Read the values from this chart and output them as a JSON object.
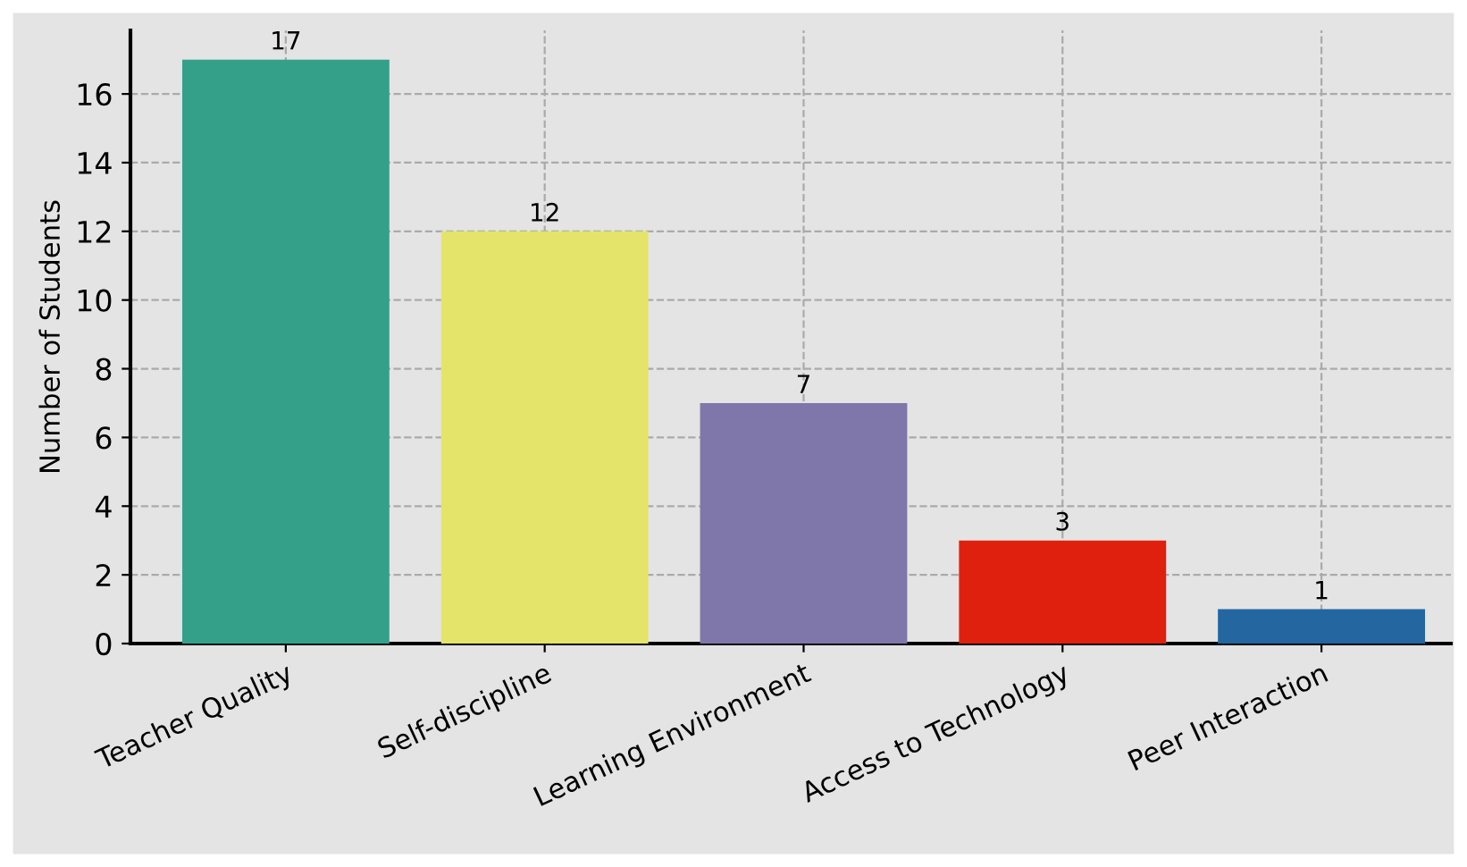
{
  "chart_data": {
    "type": "bar",
    "ylabel": "Number of Students",
    "categories": [
      "Teacher Quality",
      "Self-discipline",
      "Learning Environment",
      "Access to Technology",
      "Peer Interaction"
    ],
    "values": [
      17,
      12,
      7,
      3,
      1
    ],
    "colors": [
      "#35a08a",
      "#e4e46a",
      "#7f76aa",
      "#e0200e",
      "#2366a0"
    ],
    "ylim": [
      0,
      17.85
    ],
    "yticks": [
      0,
      2,
      4,
      6,
      8,
      10,
      12,
      14,
      16
    ],
    "grid": true,
    "data_labels": true
  }
}
